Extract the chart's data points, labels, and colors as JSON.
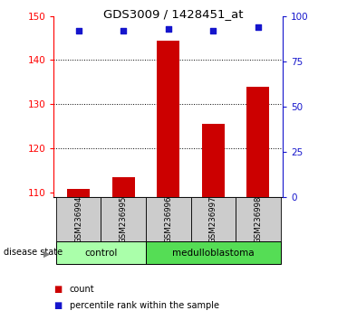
{
  "title": "GDS3009 / 1428451_at",
  "samples": [
    "GSM236994",
    "GSM236995",
    "GSM236996",
    "GSM236997",
    "GSM236998"
  ],
  "counts": [
    110.8,
    113.5,
    144.5,
    125.5,
    134.0
  ],
  "percentiles": [
    92,
    92,
    93,
    92,
    94
  ],
  "ylim_left": [
    109,
    150
  ],
  "ylim_right": [
    0,
    100
  ],
  "yticks_left": [
    110,
    120,
    130,
    140,
    150
  ],
  "yticks_right": [
    0,
    25,
    50,
    75,
    100
  ],
  "bar_color": "#cc0000",
  "dot_color": "#1515cc",
  "control_color": "#aaffaa",
  "medulloblastoma_color": "#55dd55",
  "label_bg_color": "#cccccc",
  "baseline": 109,
  "legend_count_label": "count",
  "legend_percentile_label": "percentile rank within the sample",
  "disease_state_label": "disease state",
  "control_label": "control",
  "medulloblastoma_label": "medulloblastoma",
  "n_control": 2,
  "n_medulloblastoma": 3
}
